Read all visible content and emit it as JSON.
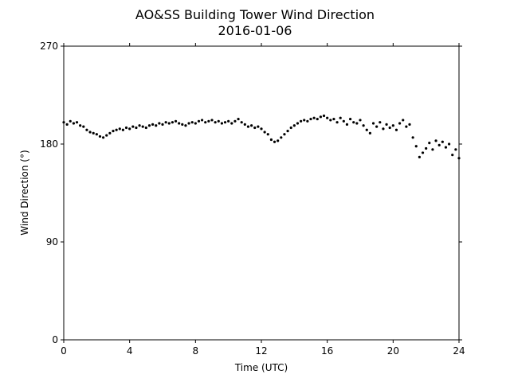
{
  "chart_data": {
    "type": "scatter",
    "title": "AO&SS Building Tower Wind Direction",
    "subtitle": "2016-01-06",
    "x_label": "Time (UTC)",
    "y_label": "Wind Direction (°)",
    "color": "#000000",
    "xlim": [
      0,
      24
    ],
    "xticks": [
      0,
      4,
      8,
      12,
      16,
      20,
      24
    ],
    "ylim": [
      0,
      270
    ],
    "yticks": [
      0,
      90,
      180,
      270
    ],
    "x": [
      0,
      0.2,
      0.4,
      0.6,
      0.8,
      1,
      1.2,
      1.4,
      1.6,
      1.8,
      2,
      2.2,
      2.4,
      2.6,
      2.8,
      3,
      3.2,
      3.4,
      3.6,
      3.8,
      4,
      4.2,
      4.4,
      4.6,
      4.8,
      5,
      5.2,
      5.4,
      5.6,
      5.8,
      6,
      6.2,
      6.4,
      6.6,
      6.8,
      7,
      7.2,
      7.4,
      7.6,
      7.8,
      8,
      8.2,
      8.4,
      8.6,
      8.8,
      9,
      9.2,
      9.4,
      9.6,
      9.8,
      10,
      10.2,
      10.4,
      10.6,
      10.8,
      11,
      11.2,
      11.4,
      11.6,
      11.8,
      12,
      12.2,
      12.4,
      12.6,
      12.8,
      13,
      13.2,
      13.4,
      13.6,
      13.8,
      14,
      14.2,
      14.4,
      14.6,
      14.8,
      15,
      15.2,
      15.4,
      15.6,
      15.8,
      16,
      16.2,
      16.4,
      16.6,
      16.8,
      17,
      17.2,
      17.4,
      17.6,
      17.8,
      18,
      18.2,
      18.4,
      18.6,
      18.8,
      19,
      19.2,
      19.4,
      19.6,
      19.8,
      20,
      20.2,
      20.4,
      20.6,
      20.8,
      21,
      21.2,
      21.4,
      21.6,
      21.8,
      22,
      22.2,
      22.4,
      22.6,
      22.8,
      23,
      23.2,
      23.4,
      23.6,
      23.8,
      24
    ],
    "values": [
      200,
      198,
      201,
      199,
      200,
      197,
      196,
      193,
      191,
      190,
      189,
      187,
      186,
      188,
      190,
      192,
      193,
      194,
      193,
      195,
      194,
      196,
      195,
      197,
      196,
      195,
      197,
      198,
      197,
      199,
      198,
      200,
      199,
      200,
      201,
      199,
      198,
      197,
      199,
      200,
      199,
      201,
      202,
      200,
      201,
      202,
      200,
      201,
      199,
      200,
      201,
      199,
      201,
      203,
      200,
      198,
      196,
      197,
      195,
      196,
      194,
      191,
      189,
      184,
      182,
      183,
      186,
      189,
      192,
      195,
      197,
      199,
      201,
      202,
      201,
      203,
      204,
      203,
      205,
      206,
      204,
      202,
      203,
      200,
      204,
      201,
      198,
      203,
      200,
      199,
      202,
      197,
      193,
      190,
      199,
      196,
      200,
      194,
      198,
      195,
      197,
      193,
      199,
      202,
      196,
      198,
      186,
      178,
      168,
      172,
      176,
      181,
      175,
      183,
      179,
      182,
      177,
      180,
      170,
      175,
      167
    ]
  }
}
